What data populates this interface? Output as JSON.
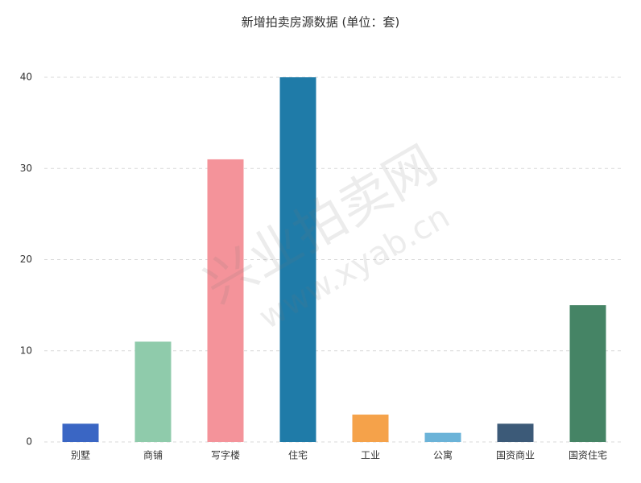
{
  "chart_data": {
    "type": "bar",
    "title": "新增拍卖房源数据 (单位：套)",
    "categories": [
      "别墅",
      "商铺",
      "写字楼",
      "住宅",
      "工业",
      "公寓",
      "国资商业",
      "国资住宅"
    ],
    "values": [
      2,
      11,
      31,
      40,
      3,
      1,
      2,
      15
    ],
    "colors": [
      "#3a66c4",
      "#8fcbab",
      "#f4939a",
      "#1f7ba8",
      "#f5a24a",
      "#6bb3d8",
      "#3c5a78",
      "#458465"
    ],
    "ylim": [
      0,
      40
    ],
    "yticks": [
      0,
      10,
      20,
      30,
      40
    ],
    "grid": true,
    "watermark": [
      "兴业拍卖网",
      "www.xyab.cn"
    ]
  }
}
